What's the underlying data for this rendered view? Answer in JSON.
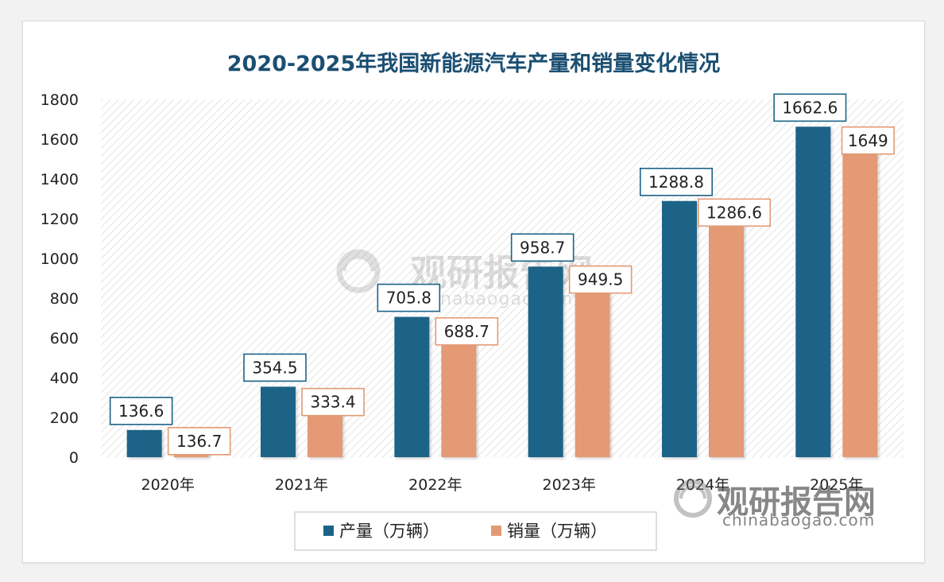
{
  "chart_data": {
    "type": "bar",
    "title": "2020-2025年我国新能源汽车产量和销量变化情况",
    "categories": [
      "2020年",
      "2021年",
      "2022年",
      "2023年",
      "2024年",
      "2025年"
    ],
    "series": [
      {
        "name": "产量（万辆）",
        "color": "#1c6387",
        "values": [
          136.6,
          354.5,
          705.8,
          958.7,
          1288.8,
          1662.6
        ]
      },
      {
        "name": "销量（万辆）",
        "color": "#e39a74",
        "values": [
          136.7,
          333.4,
          688.7,
          949.5,
          1286.6,
          1649
        ]
      }
    ],
    "data_labels": [
      [
        "136.6",
        "354.5",
        "705.8",
        "958.7",
        "1288.8",
        "1662.6"
      ],
      [
        "136.7",
        "333.4",
        "688.7",
        "949.5",
        "1286.6",
        "1649"
      ]
    ],
    "ylim": [
      0,
      1800
    ],
    "yticks": [
      0,
      200,
      400,
      600,
      800,
      1000,
      1200,
      1400,
      1600,
      1800
    ],
    "grid": false,
    "legend_position": "bottom"
  },
  "watermark": {
    "brand": "观研报告网",
    "site": "chinabaogao.com"
  }
}
